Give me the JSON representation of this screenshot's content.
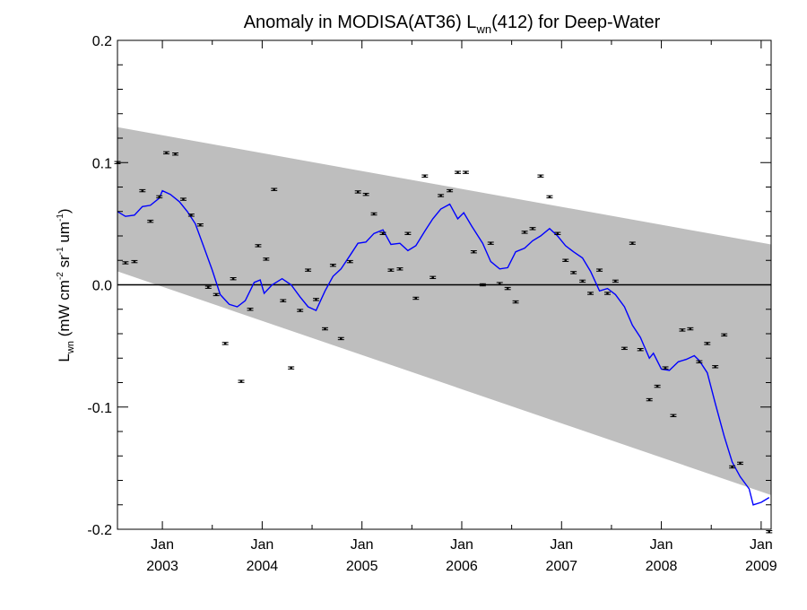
{
  "chart_data": {
    "type": "line",
    "title": "Anomaly in MODISA(AT36) L",
    "title_sub": "wn",
    "title_rest": "(412) for Deep-Water",
    "ylabel": "L",
    "ylabel_sub": "wn",
    "ylabel_units": " (mW cm",
    "ylabel_sup1": "-2",
    "ylabel_mid": " sr",
    "ylabel_sup2": "-1",
    "ylabel_mid2": " um",
    "ylabel_sup3": "-1",
    "ylabel_end": ")",
    "xlim": [
      2002.55,
      2009.1
    ],
    "ylim": [
      -0.2,
      0.2
    ],
    "x_ticks": [
      {
        "x": 2003.0,
        "month": "Jan",
        "year": "2003"
      },
      {
        "x": 2004.0,
        "month": "Jan",
        "year": "2004"
      },
      {
        "x": 2005.0,
        "month": "Jan",
        "year": "2005"
      },
      {
        "x": 2006.0,
        "month": "Jan",
        "year": "2006"
      },
      {
        "x": 2007.0,
        "month": "Jan",
        "year": "2007"
      },
      {
        "x": 2008.0,
        "month": "Jan",
        "year": "2008"
      },
      {
        "x": 2009.0,
        "month": "Jan",
        "year": "2009"
      }
    ],
    "y_ticks": [
      {
        "y": 0.2,
        "label": "0.2"
      },
      {
        "y": 0.1,
        "label": "0.1"
      },
      {
        "y": 0.0,
        "label": "0.0"
      },
      {
        "y": -0.1,
        "label": "-0.1"
      },
      {
        "y": -0.2,
        "label": "-0.2"
      }
    ],
    "zero_line": 0.0,
    "band": {
      "upper": [
        [
          2002.55,
          0.129
        ],
        [
          2009.1,
          0.033
        ]
      ],
      "lower": [
        [
          2002.55,
          0.011
        ],
        [
          2009.1,
          -0.172
        ]
      ],
      "color": "#bebebe"
    },
    "series": [
      {
        "kind": "points",
        "color": "#000000",
        "points": [
          [
            2002.55,
            0.1
          ],
          [
            2002.63,
            0.018
          ],
          [
            2002.72,
            0.019
          ],
          [
            2002.8,
            0.077
          ],
          [
            2002.88,
            0.052
          ],
          [
            2002.97,
            0.072
          ],
          [
            2003.04,
            0.108
          ],
          [
            2003.13,
            0.107
          ],
          [
            2003.21,
            0.07
          ],
          [
            2003.29,
            0.057
          ],
          [
            2003.38,
            0.049
          ],
          [
            2003.46,
            -0.002
          ],
          [
            2003.54,
            -0.008
          ],
          [
            2003.63,
            -0.048
          ],
          [
            2003.71,
            0.005
          ],
          [
            2003.79,
            -0.079
          ],
          [
            2003.88,
            -0.02
          ],
          [
            2003.96,
            0.032
          ],
          [
            2004.04,
            0.021
          ],
          [
            2004.12,
            0.078
          ],
          [
            2004.21,
            -0.013
          ],
          [
            2004.29,
            -0.068
          ],
          [
            2004.38,
            -0.021
          ],
          [
            2004.46,
            0.012
          ],
          [
            2004.54,
            -0.012
          ],
          [
            2004.63,
            -0.036
          ],
          [
            2004.71,
            0.016
          ],
          [
            2004.79,
            -0.044
          ],
          [
            2004.88,
            0.019
          ],
          [
            2004.96,
            0.076
          ],
          [
            2005.04,
            0.074
          ],
          [
            2005.12,
            0.058
          ],
          [
            2005.21,
            0.042
          ],
          [
            2005.29,
            0.012
          ],
          [
            2005.38,
            0.013
          ],
          [
            2005.46,
            0.042
          ],
          [
            2005.54,
            -0.011
          ],
          [
            2005.63,
            0.089
          ],
          [
            2005.71,
            0.006
          ],
          [
            2005.79,
            0.073
          ],
          [
            2005.88,
            0.077
          ],
          [
            2005.96,
            0.092
          ],
          [
            2006.04,
            0.092
          ],
          [
            2006.12,
            0.027
          ],
          [
            2006.21,
            0.0
          ],
          [
            2006.29,
            0.034
          ],
          [
            2006.38,
            0.001
          ],
          [
            2006.46,
            -0.003
          ],
          [
            2006.54,
            -0.014
          ],
          [
            2006.63,
            0.043
          ],
          [
            2006.71,
            0.046
          ],
          [
            2006.79,
            0.089
          ],
          [
            2006.88,
            0.072
          ],
          [
            2006.96,
            0.042
          ],
          [
            2007.04,
            0.02
          ],
          [
            2007.12,
            0.01
          ],
          [
            2007.21,
            0.003
          ],
          [
            2007.29,
            -0.007
          ],
          [
            2007.38,
            0.012
          ],
          [
            2007.46,
            -0.007
          ],
          [
            2007.54,
            0.003
          ],
          [
            2007.63,
            -0.052
          ],
          [
            2007.71,
            0.034
          ],
          [
            2007.79,
            -0.053
          ],
          [
            2007.88,
            -0.094
          ],
          [
            2007.96,
            -0.083
          ],
          [
            2008.04,
            -0.068
          ],
          [
            2008.12,
            -0.107
          ],
          [
            2008.21,
            -0.037
          ],
          [
            2008.29,
            -0.036
          ],
          [
            2008.38,
            -0.063
          ],
          [
            2008.46,
            -0.048
          ],
          [
            2008.54,
            -0.067
          ],
          [
            2008.63,
            -0.041
          ],
          [
            2008.71,
            -0.149
          ],
          [
            2008.79,
            -0.146
          ],
          [
            2009.08,
            -0.202
          ]
        ]
      },
      {
        "kind": "line",
        "color": "#0000ff",
        "points": [
          [
            2002.55,
            0.06
          ],
          [
            2002.63,
            0.056
          ],
          [
            2002.72,
            0.057
          ],
          [
            2002.8,
            0.064
          ],
          [
            2002.88,
            0.065
          ],
          [
            2002.97,
            0.071
          ],
          [
            2003.0,
            0.077
          ],
          [
            2003.08,
            0.074
          ],
          [
            2003.17,
            0.068
          ],
          [
            2003.25,
            0.06
          ],
          [
            2003.33,
            0.05
          ],
          [
            2003.42,
            0.03
          ],
          [
            2003.5,
            0.012
          ],
          [
            2003.58,
            -0.008
          ],
          [
            2003.67,
            -0.016
          ],
          [
            2003.75,
            -0.018
          ],
          [
            2003.83,
            -0.013
          ],
          [
            2003.92,
            0.002
          ],
          [
            2003.98,
            0.004
          ],
          [
            2004.02,
            -0.007
          ],
          [
            2004.1,
            0.0
          ],
          [
            2004.2,
            0.005
          ],
          [
            2004.29,
            0.0
          ],
          [
            2004.38,
            -0.01
          ],
          [
            2004.46,
            -0.018
          ],
          [
            2004.54,
            -0.021
          ],
          [
            2004.63,
            -0.005
          ],
          [
            2004.71,
            0.007
          ],
          [
            2004.79,
            0.013
          ],
          [
            2004.88,
            0.024
          ],
          [
            2004.96,
            0.034
          ],
          [
            2005.04,
            0.035
          ],
          [
            2005.12,
            0.042
          ],
          [
            2005.21,
            0.045
          ],
          [
            2005.29,
            0.033
          ],
          [
            2005.38,
            0.034
          ],
          [
            2005.46,
            0.028
          ],
          [
            2005.54,
            0.032
          ],
          [
            2005.63,
            0.044
          ],
          [
            2005.71,
            0.054
          ],
          [
            2005.79,
            0.062
          ],
          [
            2005.88,
            0.066
          ],
          [
            2005.96,
            0.054
          ],
          [
            2006.02,
            0.059
          ],
          [
            2006.1,
            0.048
          ],
          [
            2006.21,
            0.034
          ],
          [
            2006.29,
            0.019
          ],
          [
            2006.38,
            0.013
          ],
          [
            2006.46,
            0.014
          ],
          [
            2006.54,
            0.027
          ],
          [
            2006.63,
            0.03
          ],
          [
            2006.71,
            0.036
          ],
          [
            2006.79,
            0.04
          ],
          [
            2006.88,
            0.046
          ],
          [
            2006.96,
            0.04
          ],
          [
            2007.04,
            0.032
          ],
          [
            2007.12,
            0.027
          ],
          [
            2007.21,
            0.022
          ],
          [
            2007.29,
            0.011
          ],
          [
            2007.38,
            -0.005
          ],
          [
            2007.46,
            -0.003
          ],
          [
            2007.54,
            -0.008
          ],
          [
            2007.63,
            -0.018
          ],
          [
            2007.71,
            -0.033
          ],
          [
            2007.79,
            -0.043
          ],
          [
            2007.88,
            -0.06
          ],
          [
            2007.92,
            -0.056
          ],
          [
            2008.0,
            -0.069
          ],
          [
            2008.08,
            -0.07
          ],
          [
            2008.17,
            -0.063
          ],
          [
            2008.25,
            -0.061
          ],
          [
            2008.33,
            -0.058
          ],
          [
            2008.38,
            -0.062
          ],
          [
            2008.46,
            -0.072
          ],
          [
            2008.54,
            -0.097
          ],
          [
            2008.63,
            -0.124
          ],
          [
            2008.71,
            -0.145
          ],
          [
            2008.79,
            -0.157
          ],
          [
            2008.88,
            -0.167
          ],
          [
            2008.92,
            -0.18
          ],
          [
            2009.0,
            -0.178
          ],
          [
            2009.08,
            -0.174
          ]
        ]
      }
    ]
  }
}
